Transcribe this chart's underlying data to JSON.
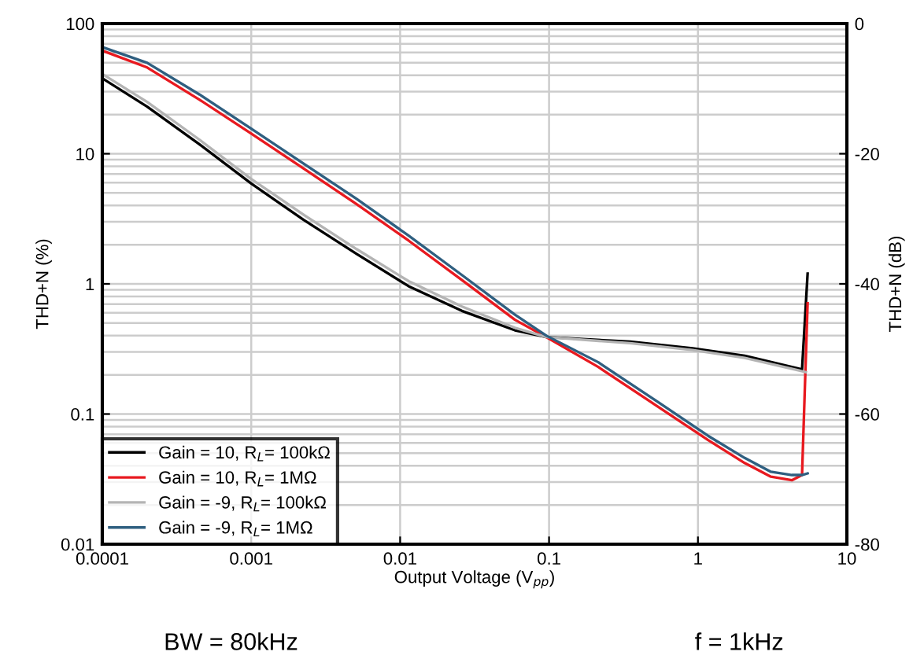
{
  "chart_data": {
    "type": "line",
    "log": "xy",
    "xlabel": "Output Voltage (V$_{pp}$)",
    "ylabel": "THD+N (%)",
    "y2label": "THD+N (dB)",
    "xlim": [
      0.0001,
      10
    ],
    "xticks": [
      {
        "value": 0.0001,
        "label": "0.0001"
      },
      {
        "value": 0.001,
        "label": "0.001"
      },
      {
        "value": 0.01,
        "label": "0.01"
      },
      {
        "value": 0.1,
        "label": "0.1"
      },
      1,
      10
    ],
    "ylim": [
      0.01,
      100
    ],
    "yticks": [
      0.01,
      0.1,
      1,
      10,
      100
    ],
    "y2lim": [
      -80,
      0
    ],
    "y2ticks": [
      -80,
      -60,
      -40,
      -20,
      0
    ],
    "grid": true,
    "legend": "bottom left",
    "line_style": "solid",
    "annotations": [
      "BW = 80kHz",
      "f = 1kHz"
    ],
    "series": [
      {
        "name": "Gain = 10, R$_{L}$= 100kΩ",
        "color": "#000000",
        "x": [
          0.0001,
          0.0002,
          0.00045,
          0.001,
          0.00225,
          0.0051,
          0.0114,
          0.026,
          0.059,
          0.096,
          0.35,
          0.92,
          2.06,
          5.0,
          5.45
        ],
        "values": [
          38,
          23,
          11.8,
          5.9,
          3.1,
          1.7,
          0.96,
          0.62,
          0.44,
          0.39,
          0.36,
          0.32,
          0.28,
          0.22,
          1.2
        ]
      },
      {
        "name": "Gain = 10, R$_{L}$= 1MΩ",
        "color": "#e8191f",
        "x": [
          0.0001,
          0.0002,
          0.00045,
          0.001,
          0.00225,
          0.0051,
          0.0114,
          0.026,
          0.059,
          0.096,
          0.214,
          0.526,
          1.17,
          2.06,
          3.09,
          4.27,
          5.0,
          5.45
        ],
        "values": [
          62,
          46,
          26,
          14.3,
          7.7,
          4.1,
          2.15,
          1.07,
          0.53,
          0.39,
          0.23,
          0.116,
          0.063,
          0.042,
          0.033,
          0.031,
          0.034,
          0.71
        ]
      },
      {
        "name": "Gain = -9, R$_{L}$= 100kΩ",
        "color": "#b4b4b4",
        "x": [
          0.0001,
          0.0002,
          0.00045,
          0.001,
          0.00225,
          0.0051,
          0.0114,
          0.026,
          0.059,
          0.096,
          0.35,
          0.92,
          2.06,
          5.3
        ],
        "values": [
          41,
          25,
          12.8,
          6.4,
          3.4,
          1.85,
          1.05,
          0.67,
          0.46,
          0.39,
          0.35,
          0.31,
          0.27,
          0.21
        ]
      },
      {
        "name": "Gain = -9, R$_{L}$= 1MΩ",
        "color": "#2f5f80",
        "x": [
          0.0001,
          0.0002,
          0.00045,
          0.001,
          0.00225,
          0.0051,
          0.0114,
          0.026,
          0.059,
          0.096,
          0.214,
          0.526,
          1.17,
          2.06,
          3.09,
          4.27,
          5.0,
          5.45
        ],
        "values": [
          66,
          50,
          28.5,
          15.6,
          8.4,
          4.5,
          2.35,
          1.17,
          0.58,
          0.4,
          0.25,
          0.126,
          0.068,
          0.046,
          0.036,
          0.034,
          0.034,
          0.035
        ]
      }
    ]
  }
}
